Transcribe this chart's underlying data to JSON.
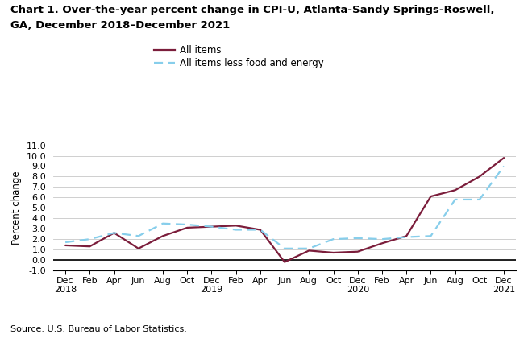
{
  "title_line1": "Chart 1. Over-the-year percent change in CPI-U, Atlanta-Sandy Springs-Roswell,",
  "title_line2": "GA, December 2018–December 2021",
  "ylabel": "Percent change",
  "source": "Source: U.S. Bureau of Labor Statistics.",
  "all_items": [
    1.4,
    1.3,
    2.6,
    1.1,
    2.3,
    3.1,
    3.2,
    3.3,
    2.9,
    -0.2,
    0.9,
    0.7,
    0.8,
    1.6,
    2.3,
    6.1,
    6.7,
    8.0,
    9.8
  ],
  "all_items_less": [
    1.7,
    2.0,
    2.6,
    2.3,
    3.5,
    3.4,
    3.2,
    2.9,
    2.9,
    1.1,
    1.1,
    2.0,
    2.1,
    2.0,
    2.2,
    2.3,
    5.8,
    5.8,
    9.0
  ],
  "x_tick_labels": [
    "Dec\n2018",
    "Feb",
    "Apr",
    "Jun",
    "Aug",
    "Oct",
    "Dec\n2019",
    "Feb",
    "Apr",
    "Jun",
    "Aug",
    "Oct",
    "Dec\n2020",
    "Feb",
    "Apr",
    "Jun",
    "Aug",
    "Oct",
    "Dec\n2021"
  ],
  "all_items_color": "#7B1D3B",
  "all_items_less_color": "#87CEEB",
  "legend_labels": [
    "All items",
    "All items less food and energy"
  ],
  "ylim": [
    -1.0,
    11.0
  ],
  "ytick_vals": [
    -1.0,
    0.0,
    1.0,
    2.0,
    3.0,
    4.0,
    5.0,
    6.0,
    7.0,
    8.0,
    9.0,
    10.0,
    11.0
  ],
  "ytick_labels": [
    "-1.0",
    "0.0",
    "1.0",
    "2.0",
    "3.0",
    "4.0",
    "5.0",
    "6.0",
    "7.0",
    "8.0",
    "9.0",
    "10.0",
    "11.0"
  ],
  "grid_color": "#c8c8c8",
  "background_color": "#ffffff",
  "title_fontsize": 9.5,
  "tick_fontsize": 8.0,
  "ylabel_fontsize": 8.5,
  "legend_fontsize": 8.5,
  "source_fontsize": 8.0
}
